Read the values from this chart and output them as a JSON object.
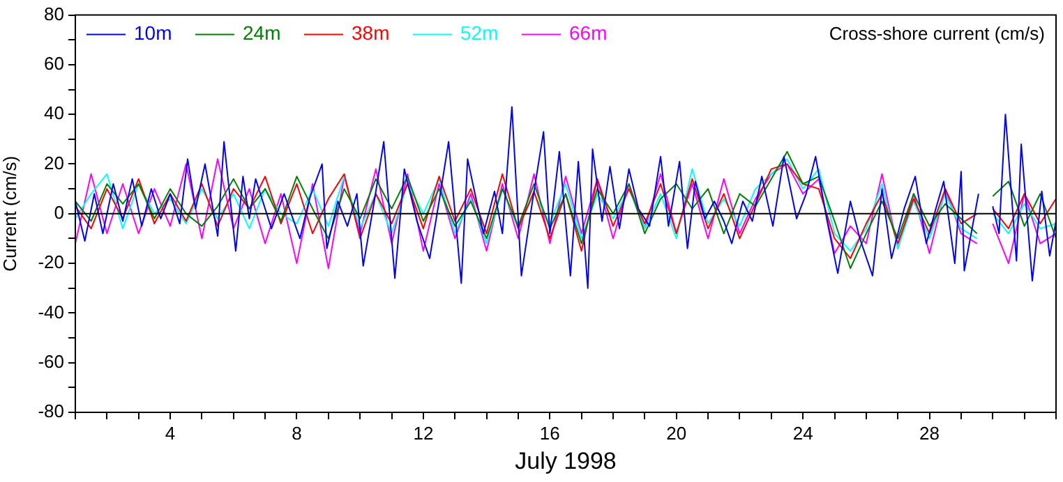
{
  "chart_data": {
    "type": "line",
    "title": "Cross-shore current (cm/s)",
    "xlabel": "July 1998",
    "ylabel": "Current (cm/s)",
    "xlim": [
      1,
      32
    ],
    "ylim": [
      -80,
      80
    ],
    "xticks": [
      {
        "value": 1,
        "label": null
      },
      {
        "value": 2,
        "label": null
      },
      {
        "value": 3,
        "label": null
      },
      4,
      {
        "value": 5,
        "label": null
      },
      {
        "value": 6,
        "label": null
      },
      {
        "value": 7,
        "label": null
      },
      8,
      {
        "value": 9,
        "label": null
      },
      {
        "value": 10,
        "label": null
      },
      {
        "value": 11,
        "label": null
      },
      12,
      {
        "value": 13,
        "label": null
      },
      {
        "value": 14,
        "label": null
      },
      {
        "value": 15,
        "label": null
      },
      16,
      {
        "value": 17,
        "label": null
      },
      {
        "value": 18,
        "label": null
      },
      {
        "value": 19,
        "label": null
      },
      20,
      {
        "value": 21,
        "label": null
      },
      {
        "value": 22,
        "label": null
      },
      {
        "value": 23,
        "label": null
      },
      24,
      {
        "value": 25,
        "label": null
      },
      {
        "value": 26,
        "label": null
      },
      {
        "value": 27,
        "label": null
      },
      28,
      {
        "value": 29,
        "label": null
      },
      {
        "value": 30,
        "label": null
      },
      {
        "value": 31,
        "label": null
      },
      {
        "value": 32,
        "label": null
      }
    ],
    "yticks": [
      -80,
      {
        "value": -70,
        "label": null
      },
      -60,
      {
        "value": -50,
        "label": null
      },
      -40,
      {
        "value": -30,
        "label": null
      },
      -20,
      {
        "value": -10,
        "label": null
      },
      0,
      {
        "value": 10,
        "label": null
      },
      20,
      {
        "value": 30,
        "label": null
      },
      40,
      {
        "value": 50,
        "label": null
      },
      60,
      {
        "value": 70,
        "label": null
      },
      80
    ],
    "grid": false,
    "legend": "top left",
    "line_style": "solid",
    "ref_lines": [
      {
        "axis": "y",
        "value": 0,
        "color": "#000000"
      }
    ],
    "series": [
      {
        "name": "10m",
        "color": "#0000ff",
        "x": [
          1.0,
          1.3,
          1.6,
          1.87,
          2.2,
          2.5,
          2.8,
          3.1,
          3.4,
          3.7,
          4.0,
          4.3,
          4.55,
          4.8,
          5.1,
          5.5,
          5.7,
          6.07,
          6.3,
          6.5,
          6.7,
          7.2,
          7.6,
          8.1,
          8.4,
          8.8,
          8.95,
          9.3,
          9.6,
          9.9,
          10.1,
          10.45,
          10.75,
          11.1,
          11.4,
          11.8,
          12.2,
          12.5,
          12.8,
          13.2,
          13.4,
          13.9,
          14.25,
          14.5,
          14.8,
          15.1,
          15.45,
          15.8,
          16.0,
          16.3,
          16.65,
          16.9,
          17.2,
          17.35,
          17.65,
          17.9,
          18.2,
          18.5,
          18.8,
          19.15,
          19.5,
          19.75,
          20.1,
          20.35,
          20.6,
          20.9,
          21.2,
          21.5,
          21.75,
          22.1,
          22.4,
          22.7,
          23.05,
          23.4,
          23.8,
          24.1,
          24.4,
          24.75,
          25.1,
          25.5,
          25.8,
          26.2,
          26.5,
          26.8,
          27.2,
          27.55,
          27.9,
          28.2,
          28.45,
          28.8,
          29.0,
          29.1,
          29.55,
          29.7,
          30.0,
          30.2,
          30.4,
          30.75,
          30.9,
          31.25,
          31.55,
          31.8,
          32.0
        ],
        "values": [
          5,
          -11,
          8,
          -8,
          12,
          -3,
          14,
          -5,
          10,
          -2,
          8,
          -4,
          22,
          2,
          20,
          -9,
          29,
          -15,
          15,
          -2,
          14,
          -6,
          8,
          -10,
          6,
          20,
          -14,
          5,
          -5,
          8,
          -21,
          5,
          29,
          -26,
          18,
          -3,
          -18,
          5,
          29,
          -28,
          22,
          -8,
          9,
          -8,
          43,
          -25,
          5,
          33,
          -8,
          25,
          -25,
          21,
          -30,
          26,
          -3,
          19,
          -6,
          18,
          2,
          -5,
          23,
          -5,
          21,
          -14,
          13,
          -2,
          5,
          -3,
          -12,
          5,
          -3,
          15,
          -5,
          23,
          -2,
          8,
          23,
          -2,
          -24,
          5,
          -10,
          -25,
          10,
          -18,
          2,
          15,
          -12,
          2,
          13,
          -20,
          17,
          -23,
          8,
          null,
          3,
          -8,
          40,
          -19,
          28,
          -27,
          9,
          -17,
          -3
        ]
      },
      {
        "name": "24m",
        "color": "#008000",
        "x": [
          1,
          1.5,
          2,
          2.5,
          3,
          3.5,
          4,
          4.5,
          5,
          5.5,
          6,
          6.5,
          7,
          7.5,
          8,
          8.5,
          9,
          9.5,
          10,
          10.5,
          11,
          11.5,
          12,
          12.5,
          13,
          13.5,
          14,
          14.5,
          15,
          15.5,
          16,
          16.5,
          17,
          17.5,
          18,
          18.5,
          19,
          19.5,
          20,
          20.5,
          21,
          21.5,
          22,
          22.5,
          23,
          23.5,
          24,
          24.5,
          25,
          25.5,
          26,
          26.5,
          27,
          27.5,
          28,
          28.5,
          29,
          29.5,
          29.75,
          30,
          30.5,
          31,
          31.5,
          32
        ],
        "values": [
          5,
          -3,
          12,
          4,
          12,
          -2,
          10,
          0,
          -5,
          3,
          14,
          2,
          10,
          -3,
          15,
          2,
          -10,
          10,
          -2,
          14,
          2,
          15,
          -3,
          10,
          -5,
          5,
          -10,
          10,
          -5,
          12,
          -6,
          8,
          -12,
          10,
          0,
          12,
          -8,
          6,
          12,
          2,
          10,
          -8,
          8,
          3,
          14,
          25,
          12,
          15,
          -3,
          -22,
          -8,
          5,
          -10,
          8,
          -5,
          4,
          -2,
          -8,
          null,
          7,
          13,
          -5,
          8,
          -10
        ]
      },
      {
        "name": "38m",
        "color": "#ff0000",
        "x": [
          1,
          1.5,
          2,
          2.5,
          3,
          3.5,
          4,
          4.5,
          5,
          5.5,
          6,
          6.5,
          7,
          7.5,
          8,
          8.5,
          9,
          9.5,
          10,
          10.5,
          11,
          11.5,
          12,
          12.5,
          13,
          13.5,
          14,
          14.5,
          15,
          15.5,
          16,
          16.5,
          17,
          17.5,
          18,
          18.5,
          19,
          19.5,
          20,
          20.5,
          21,
          21.5,
          22,
          22.5,
          23,
          23.5,
          24,
          24.5,
          25,
          25.5,
          26,
          26.5,
          27,
          27.5,
          28,
          28.5,
          29,
          29.5,
          29.75,
          30,
          30.5,
          31,
          31.5,
          32
        ],
        "values": [
          3,
          -6,
          10,
          -2,
          14,
          -4,
          8,
          -3,
          12,
          -5,
          10,
          2,
          15,
          -4,
          12,
          -8,
          6,
          16,
          -10,
          8,
          -4,
          12,
          -6,
          15,
          -3,
          10,
          -8,
          16,
          -6,
          9,
          -10,
          8,
          -15,
          14,
          -5,
          10,
          -4,
          12,
          -8,
          14,
          -6,
          8,
          -10,
          4,
          18,
          20,
          12,
          10,
          -10,
          -18,
          -4,
          8,
          -12,
          6,
          -8,
          10,
          -4,
          0,
          null,
          2,
          -6,
          8,
          -4,
          6
        ]
      },
      {
        "name": "52m",
        "color": "#00ffff",
        "x": [
          1,
          1.5,
          2,
          2.5,
          3,
          3.5,
          4,
          4.5,
          5,
          5.5,
          6,
          6.5,
          7,
          7.5,
          8,
          8.5,
          9,
          9.5,
          10,
          10.5,
          11,
          11.5,
          12,
          12.5,
          13,
          13.5,
          14,
          14.5,
          15,
          15.5,
          16,
          16.5,
          17,
          17.5,
          18,
          18.5,
          19,
          19.5,
          20,
          20.5,
          21,
          21.5,
          22,
          22.5,
          23,
          23.5,
          24,
          24.5,
          25,
          25.5,
          26,
          26.5,
          27,
          27.5,
          28,
          28.5,
          29,
          29.5,
          29.75,
          30,
          30.5,
          31,
          31.5,
          32
        ],
        "values": [
          -2,
          8,
          16,
          -6,
          12,
          0,
          6,
          -4,
          10,
          -2,
          8,
          -6,
          10,
          0,
          -4,
          10,
          -5,
          15,
          -6,
          8,
          -8,
          12,
          0,
          14,
          -8,
          6,
          -12,
          10,
          -6,
          8,
          -4,
          12,
          -10,
          8,
          -2,
          10,
          -6,
          8,
          -10,
          18,
          -4,
          6,
          -5,
          10,
          16,
          22,
          10,
          18,
          -8,
          -15,
          -6,
          12,
          -14,
          5,
          -10,
          8,
          -6,
          -10,
          null,
          0,
          -8,
          4,
          -6,
          -4
        ]
      },
      {
        "name": "66m",
        "color": "#ff00ff",
        "x": [
          1,
          1.5,
          2,
          2.5,
          3,
          3.5,
          4,
          4.5,
          5,
          5.5,
          6,
          6.5,
          7,
          7.5,
          8,
          8.5,
          9,
          9.5,
          10,
          10.5,
          11,
          11.5,
          12,
          12.5,
          13,
          13.5,
          14,
          14.5,
          15,
          15.5,
          16,
          16.5,
          17,
          17.5,
          18,
          18.5,
          19,
          19.5,
          20,
          20.5,
          21,
          21.5,
          22,
          22.5,
          23,
          23.5,
          24,
          24.5,
          25,
          25.5,
          26,
          26.5,
          27,
          27.5,
          28,
          28.5,
          29,
          29.5,
          29.75,
          30,
          30.5,
          31,
          31.5,
          32
        ],
        "values": [
          -12,
          16,
          -8,
          12,
          -8,
          10,
          -5,
          20,
          -10,
          22,
          -6,
          10,
          -12,
          8,
          -20,
          12,
          -22,
          15,
          -8,
          18,
          -12,
          16,
          -15,
          12,
          -10,
          8,
          -15,
          12,
          -10,
          16,
          -12,
          15,
          -8,
          14,
          -10,
          12,
          -6,
          16,
          -8,
          12,
          -10,
          14,
          -8,
          6,
          16,
          20,
          8,
          14,
          -16,
          -5,
          -12,
          16,
          -14,
          8,
          -16,
          10,
          -8,
          -12,
          null,
          -4,
          -20,
          8,
          -12,
          -8
        ]
      }
    ]
  }
}
